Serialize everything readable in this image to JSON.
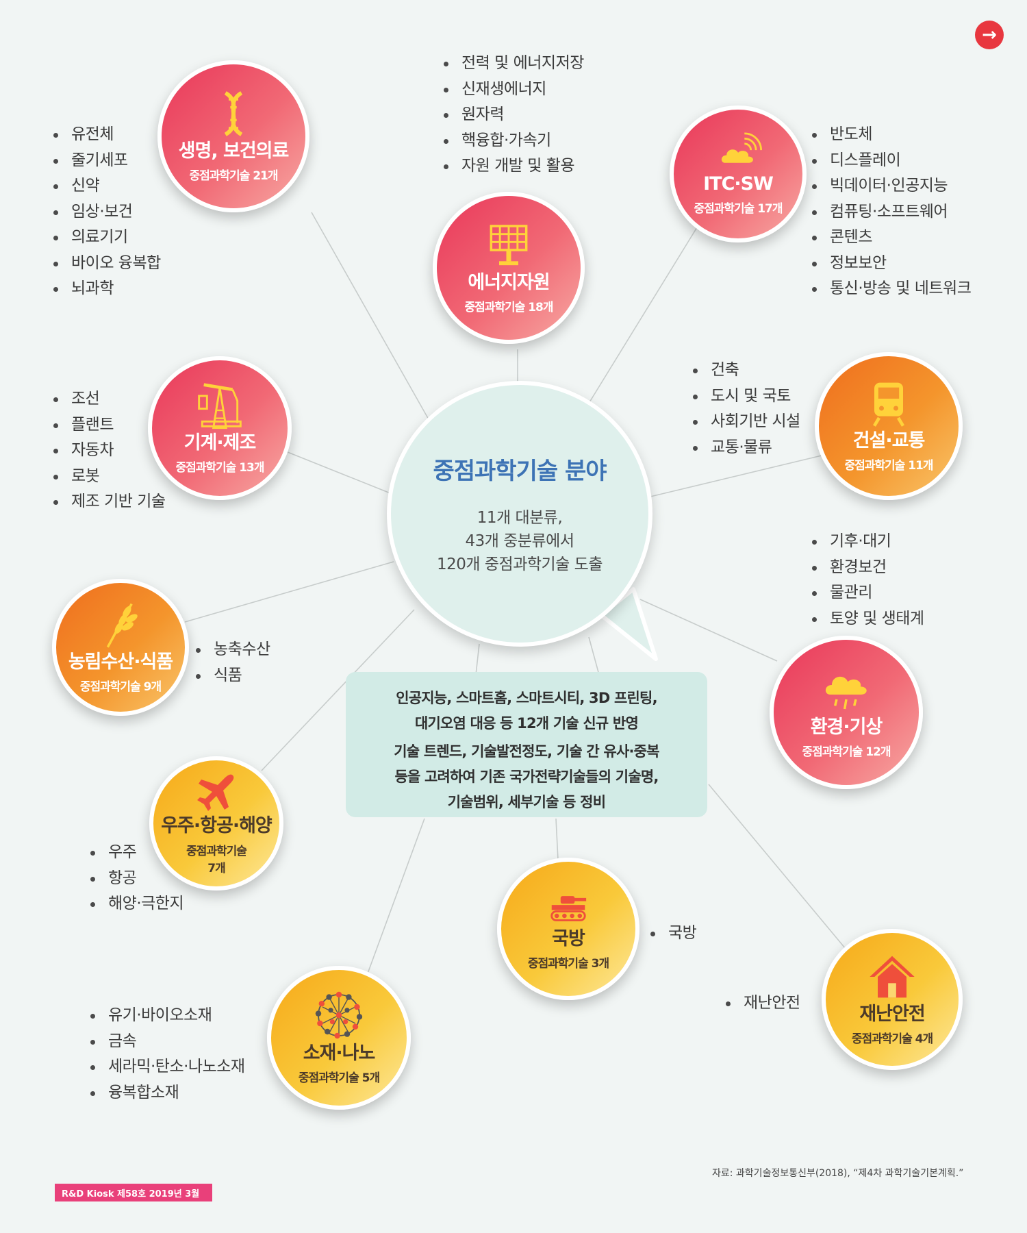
{
  "nav": {
    "next_icon": "→"
  },
  "center": {
    "title": "중점과학기술 분야",
    "lines": [
      "11개 대분류,",
      "43개 중분류에서",
      "120개 중점과학기술 도출"
    ]
  },
  "notes": {
    "p1_line1": "인공지능, 스마트홈, 스마트시티, 3D 프린팅,",
    "p1_line2": "대기오염 대응 등 12개 기술 신규 반영",
    "p2_line1": "기술 트렌드, 기술발전정도, 기술 간 유사·중복",
    "p2_line2": "등을 고려하여 기존 국가전략기술들의 기술명,",
    "p2_line3": "기술범위, 세부기술 등 정비"
  },
  "categories": {
    "bio": {
      "title": "생명, 보건의료",
      "sub": "중점과학기술 21개",
      "icon": "dna-icon",
      "items": [
        "유전체",
        "줄기세포",
        "신약",
        "임상·보건",
        "의료기기",
        "바이오 융복합",
        "뇌과학"
      ]
    },
    "energy": {
      "title": "에너지자원",
      "sub": "중점과학기술 18개",
      "icon": "solar-panel-icon",
      "items": [
        "전력 및 에너지저장",
        "신재생에너지",
        "원자력",
        "핵융합·가속기",
        "자원 개발 및 활용"
      ]
    },
    "ict": {
      "title": "ITC·SW",
      "sub": "중점과학기술 17개",
      "icon": "cloud-wifi-icon",
      "items": [
        "반도체",
        "디스플레이",
        "빅데이터·인공지능",
        "컴퓨팅·소프트웨어",
        "콘텐츠",
        "정보보안",
        "통신·방송 및 네트워크"
      ]
    },
    "machine": {
      "title": "기계·제조",
      "sub": "중점과학기술 13개",
      "icon": "oil-pump-icon",
      "items": [
        "조선",
        "플랜트",
        "자동차",
        "로봇",
        "제조 기반 기술"
      ]
    },
    "construction": {
      "title": "건설·교통",
      "sub": "중점과학기술 11개",
      "icon": "train-icon",
      "items": [
        "건축",
        "도시 및 국토",
        "사회기반 시설",
        "교통·물류"
      ]
    },
    "agri": {
      "title": "농림수산·식품",
      "sub": "중점과학기술 9개",
      "icon": "wheat-icon",
      "items": [
        "농축수산",
        "식품"
      ]
    },
    "env": {
      "title": "환경·기상",
      "sub": "중점과학기술 12개",
      "icon": "rain-cloud-icon",
      "items": [
        "기후·대기",
        "환경보건",
        "물관리",
        "토양 및 생태계"
      ]
    },
    "space": {
      "title": "우주·항공·해양",
      "sub": "중점과학기술",
      "sub2": "7개",
      "icon": "airplane-icon",
      "items": [
        "우주",
        "항공",
        "해양·극한지"
      ]
    },
    "defense": {
      "title": "국방",
      "sub": "중점과학기술 3개",
      "icon": "tank-icon",
      "items": [
        "국방"
      ]
    },
    "disaster": {
      "title": "재난안전",
      "sub": "중점과학기술 4개",
      "icon": "house-icon",
      "items": [
        "재난안전"
      ]
    },
    "nano": {
      "title": "소재·나노",
      "sub": "중점과학기술 5개",
      "icon": "molecule-icon",
      "items": [
        "유기·바이오소재",
        "금속",
        "세라믹·탄소·나노소재",
        "융복합소재"
      ]
    }
  },
  "source": "자료: 과학기술정보통신부(2018), “제4차 과학기술기본계획.”",
  "footer": "R&D Kiosk 제58호 2019년 3월",
  "colors": {
    "red": "#e9385a",
    "orange": "#ef6e1e",
    "yellow": "#f6a91a",
    "center_title": "#3d73b5",
    "badge": "#e9407a"
  }
}
